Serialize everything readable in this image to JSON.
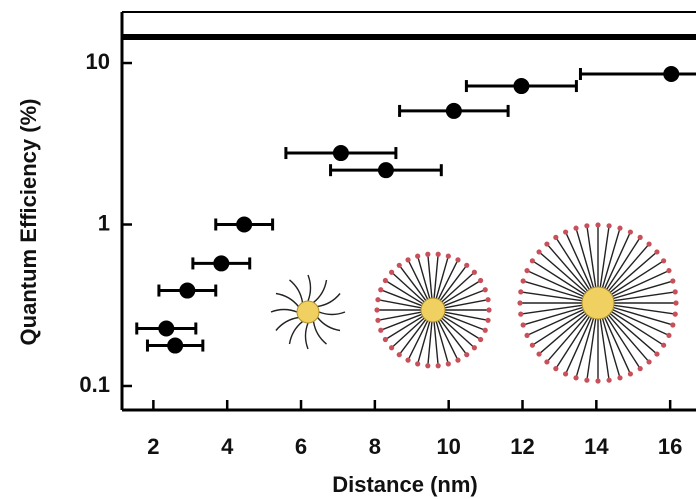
{
  "chart_data": {
    "type": "scatter",
    "xlabel": "Distance (nm)",
    "ylabel": "Quantum Efficiency (%)",
    "x": [
      4.46,
      3.84,
      2.92,
      2.35,
      2.59,
      7.08,
      8.3,
      10.14,
      11.97,
      16.03
    ],
    "values": [
      1.0,
      0.574,
      0.39,
      0.227,
      0.178,
      2.77,
      2.17,
      5.05,
      7.2,
      8.55
    ],
    "x_err": [
      0.77,
      0.77,
      0.77,
      0.8,
      0.75,
      1.49,
      1.5,
      1.47,
      1.49,
      2.46
    ],
    "color": "#000000",
    "reference_line": 14.5,
    "xlim": [
      1.15,
      16.7
    ],
    "ylim": [
      0.071,
      20.7
    ],
    "xticks": [
      2,
      4,
      6,
      8,
      10,
      12,
      14,
      16
    ],
    "yticks": [
      0.1,
      1,
      10
    ],
    "yscale": "log"
  }
}
